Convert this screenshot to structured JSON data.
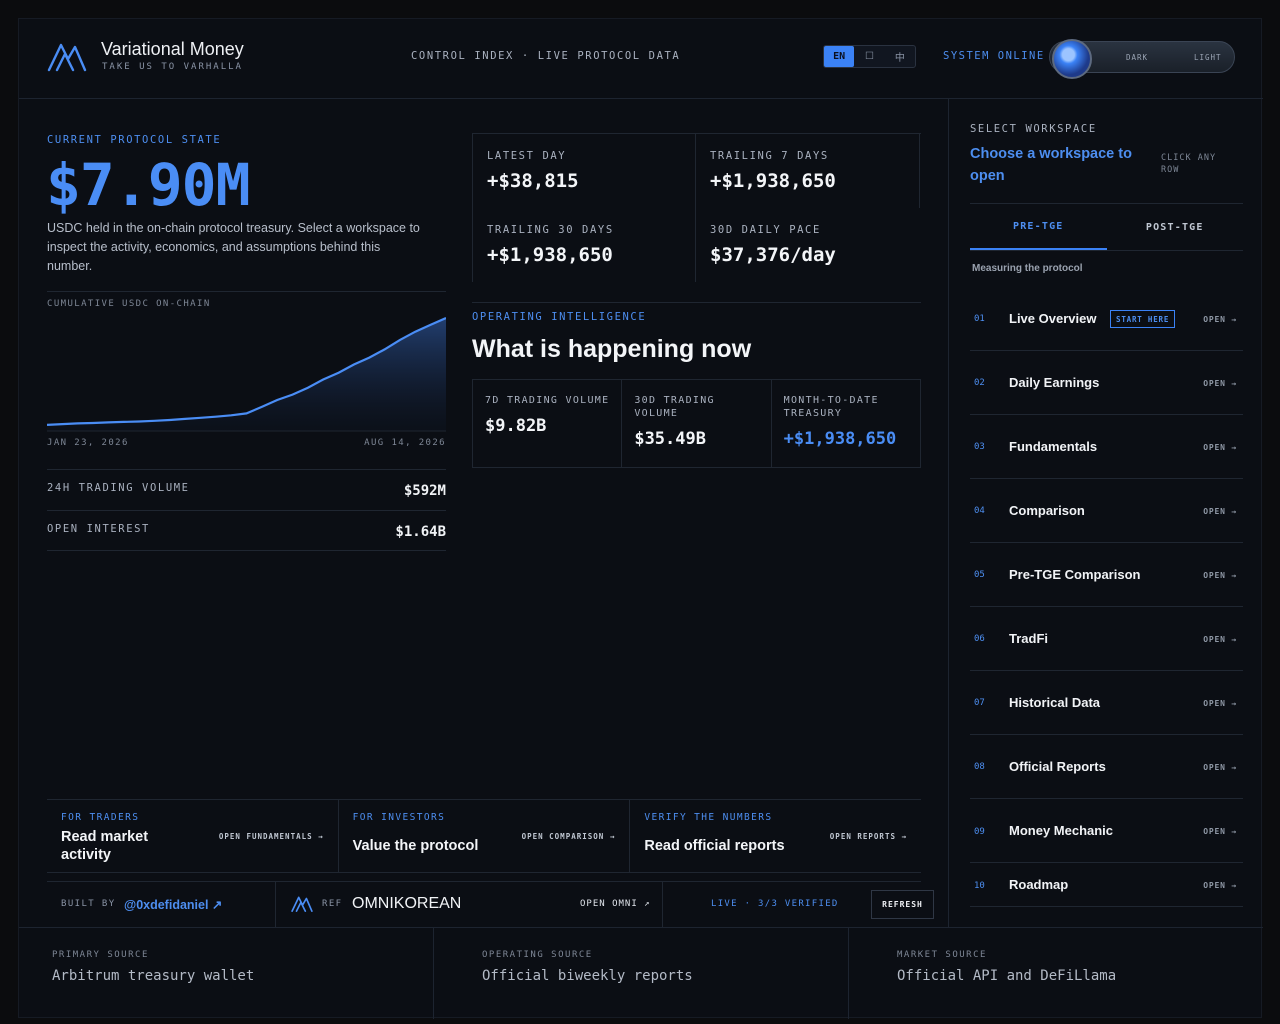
{
  "header": {
    "brand_name": "Variational Money",
    "brand_tagline": "TAKE US TO VARHALLA",
    "center_text": "CONTROL INDEX · LIVE PROTOCOL DATA",
    "languages": [
      "EN",
      "☐",
      "中"
    ],
    "status": "SYSTEM ONLINE",
    "theme_dark": "DARK",
    "theme_light": "LIGHT"
  },
  "hero": {
    "eyebrow": "CURRENT PROTOCOL STATE",
    "value": "$7.90M",
    "description": "USDC held in the on-chain protocol treasury. Select a workspace to inspect the activity, economics, and assumptions behind this number."
  },
  "chart_data": {
    "type": "area",
    "title": "CUMULATIVE USDC ON-CHAIN",
    "x_start_label": "JAN 23, 2026",
    "x_end_label": "AUG 14, 2026",
    "values": [
      0.08,
      0.14,
      0.19,
      0.22,
      0.26,
      0.3,
      0.33,
      0.38,
      0.44,
      0.52,
      0.6,
      0.68,
      0.78,
      0.92,
      1.4,
      1.9,
      2.3,
      2.8,
      3.4,
      3.9,
      4.5,
      5.0,
      5.6,
      6.3,
      6.9,
      7.4,
      7.9
    ],
    "color": "#4a8df5"
  },
  "left_metrics": [
    {
      "label": "24H TRADING VOLUME",
      "value": "$592M"
    },
    {
      "label": "OPEN INTEREST",
      "value": "$1.64B"
    }
  ],
  "stats": [
    {
      "label": "LATEST DAY",
      "value": "+$38,815"
    },
    {
      "label": "TRAILING 7 DAYS",
      "value": "+$1,938,650"
    },
    {
      "label": "TRAILING 30 DAYS",
      "value": "+$1,938,650"
    },
    {
      "label": "30D DAILY PACE",
      "value": "$37,376/day"
    }
  ],
  "intel": {
    "eyebrow": "OPERATING INTELLIGENCE",
    "title": "What is happening now",
    "volumes": [
      {
        "label": "7D TRADING VOLUME",
        "value": "$9.82B"
      },
      {
        "label": "30D TRADING VOLUME",
        "value": "$35.49B"
      },
      {
        "label": "MONTH-TO-DATE TREASURY",
        "value": "+$1,938,650"
      }
    ]
  },
  "cards": [
    {
      "eyebrow": "FOR TRADERS",
      "title": "Read market activity",
      "cta": "OPEN FUNDAMENTALS →"
    },
    {
      "eyebrow": "FOR INVESTORS",
      "title": "Value the protocol",
      "cta": "OPEN COMPARISON →"
    },
    {
      "eyebrow": "VERIFY THE NUMBERS",
      "title": "Read official reports",
      "cta": "OPEN REPORTS →"
    }
  ],
  "credit": {
    "built_by_label": "BUILT BY",
    "built_by_handle": "@0xdefidaniel ↗",
    "ref_label": "REF",
    "ref_value": "OMNIKOREAN",
    "open_omni": "OPEN OMNI ↗",
    "live_status": "LIVE · 3/3 VERIFIED",
    "refresh": "REFRESH"
  },
  "sources": [
    {
      "label": "PRIMARY SOURCE",
      "value": "Arbitrum treasury wallet"
    },
    {
      "label": "OPERATING SOURCE",
      "value": "Official biweekly reports"
    },
    {
      "label": "MARKET SOURCE",
      "value": "Official API and DeFiLlama"
    }
  ],
  "sidebar": {
    "eyebrow": "SELECT WORKSPACE",
    "title": "Choose a workspace to open",
    "hint": "CLICK ANY ROW",
    "tabs": [
      "PRE-TGE",
      "POST-TGE"
    ],
    "section_label": "Measuring the protocol",
    "start_badge": "START HERE",
    "items": [
      {
        "num": "01",
        "name": "Live Overview",
        "open": "OPEN →"
      },
      {
        "num": "02",
        "name": "Daily Earnings",
        "open": "OPEN →"
      },
      {
        "num": "03",
        "name": "Fundamentals",
        "open": "OPEN →"
      },
      {
        "num": "04",
        "name": "Comparison",
        "open": "OPEN →"
      },
      {
        "num": "05",
        "name": "Pre-TGE Comparison",
        "open": "OPEN →"
      },
      {
        "num": "06",
        "name": "TradFi",
        "open": "OPEN →"
      },
      {
        "num": "07",
        "name": "Historical Data",
        "open": "OPEN →"
      },
      {
        "num": "08",
        "name": "Official Reports",
        "open": "OPEN →"
      },
      {
        "num": "09",
        "name": "Money Mechanic",
        "open": "OPEN →"
      },
      {
        "num": "10",
        "name": "Roadmap",
        "open": "OPEN →"
      }
    ]
  }
}
